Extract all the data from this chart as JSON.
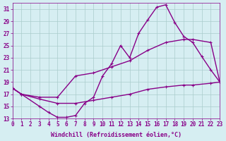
{
  "xlabel": "Windchill (Refroidissement éolien,°C)",
  "background_color": "#d6eef2",
  "line_color": "#880088",
  "grid_color": "#aacccc",
  "xlim": [
    0,
    23
  ],
  "ylim": [
    13,
    32
  ],
  "yticks": [
    13,
    15,
    17,
    19,
    21,
    23,
    25,
    27,
    29,
    31
  ],
  "xticks": [
    0,
    1,
    2,
    3,
    4,
    5,
    6,
    7,
    8,
    9,
    10,
    11,
    12,
    13,
    14,
    15,
    16,
    17,
    18,
    19,
    20,
    21,
    22,
    23
  ],
  "curve1_x": [
    0,
    1,
    3,
    4,
    5,
    6,
    7,
    8,
    9,
    10,
    11,
    12,
    13,
    14,
    15,
    16,
    17,
    18,
    19,
    20,
    21,
    22,
    23
  ],
  "curve1_y": [
    18.0,
    17.0,
    15.0,
    14.0,
    13.2,
    13.2,
    13.5,
    15.5,
    16.5,
    20.0,
    22.0,
    25.0,
    23.0,
    27.0,
    29.2,
    31.3,
    31.7,
    28.8,
    26.5,
    25.5,
    23.2,
    21.0,
    19.0
  ],
  "curve2_x": [
    0,
    1,
    3,
    5,
    7,
    9,
    11,
    13,
    15,
    17,
    19,
    20,
    22,
    23
  ],
  "curve2_y": [
    18.0,
    17.0,
    16.5,
    16.5,
    20.0,
    20.5,
    21.5,
    22.5,
    24.2,
    25.5,
    26.0,
    26.0,
    25.5,
    19.0
  ],
  "curve3_x": [
    0,
    1,
    3,
    5,
    7,
    9,
    11,
    13,
    15,
    17,
    19,
    20,
    22,
    23
  ],
  "curve3_y": [
    18.0,
    17.0,
    16.2,
    15.5,
    15.5,
    16.0,
    16.5,
    17.0,
    17.8,
    18.2,
    18.5,
    18.5,
    18.8,
    19.0
  ],
  "markersize": 2.5,
  "linewidth": 1.0,
  "tick_fontsize": 5.5,
  "label_fontsize": 6.0
}
